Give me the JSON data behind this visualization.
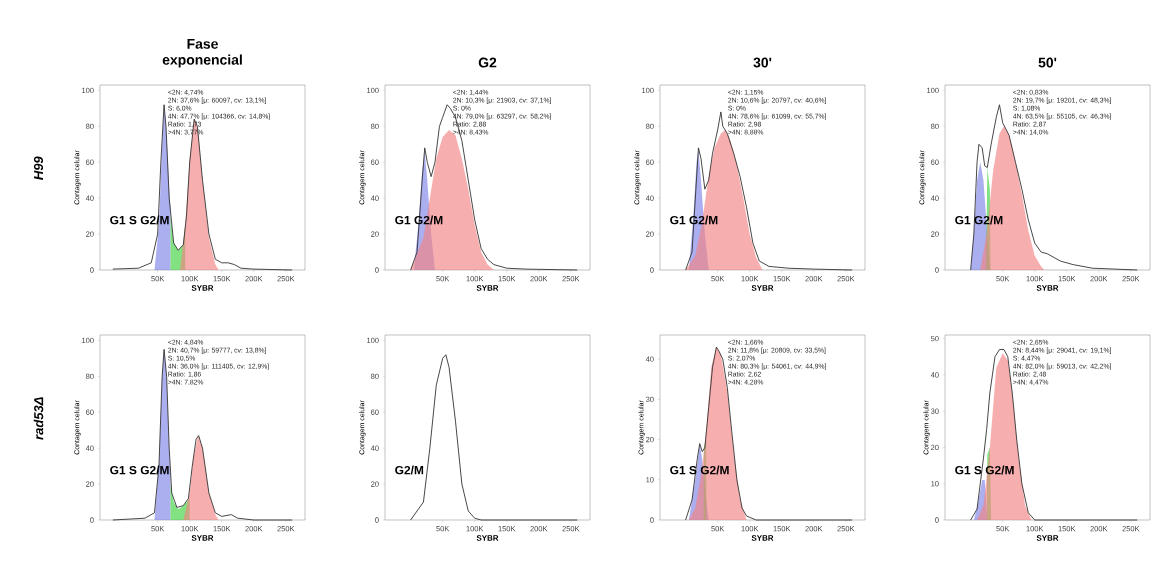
{
  "chart_data": [
    {
      "type": "line",
      "title": "Fase exponencial",
      "xlabel": "SYBR",
      "ylabel": "Contagem celular",
      "xlim": [
        -40000,
        280000
      ],
      "ylim": [
        0,
        103
      ],
      "xticks": [
        {
          "value": 50000,
          "label": "50K"
        },
        {
          "value": 100000,
          "label": "100K"
        },
        {
          "value": 150000,
          "label": "150K"
        },
        {
          "value": 200000,
          "label": "200K"
        },
        {
          "value": 250000,
          "label": "250K"
        }
      ],
      "yticks": [
        0,
        20,
        40,
        60,
        80,
        100
      ],
      "series": [
        {
          "type": "area",
          "color": "#7f84e6",
          "x": [
            45000,
            52000,
            57000,
            60000,
            64000,
            68000,
            70000
          ],
          "values": [
            0,
            25,
            70,
            92,
            75,
            45,
            35
          ]
        },
        {
          "type": "area",
          "color": "#3fd23f",
          "x": [
            70000,
            75000,
            82000,
            90000,
            93000
          ],
          "values": [
            30,
            15,
            11,
            14,
            25
          ]
        },
        {
          "type": "area",
          "color": "#f28282",
          "x": [
            85000,
            93000,
            100000,
            107000,
            113000,
            120000,
            130000,
            140000,
            145000
          ],
          "values": [
            0,
            25,
            62,
            84,
            78,
            50,
            18,
            3,
            0
          ]
        },
        {
          "type": "line",
          "color": "#333333",
          "x": [
            -20000,
            20000,
            40000,
            50000,
            55000,
            60000,
            63000,
            68000,
            75000,
            82000,
            90000,
            95000,
            100000,
            107000,
            112000,
            120000,
            130000,
            140000,
            150000,
            160000,
            170000,
            180000,
            200000,
            260000
          ],
          "values": [
            0.5,
            1,
            4,
            20,
            60,
            92,
            80,
            40,
            15,
            11,
            14,
            30,
            60,
            84,
            80,
            50,
            20,
            6,
            4,
            4,
            3,
            1,
            0.5,
            0
          ]
        }
      ],
      "annotations": [
        {
          "text": "H99"
        },
        "<2N: 4,74%",
        "2N: 37,6%  [μ: 60097, cv: 13,1%]",
        "S: 6,0%",
        "4N: 47,7%  [μ: 104366, cv: 14,8%]",
        "Ratio: 1,73",
        ">4N: 3,77%",
        "G1 S G2/M"
      ]
    },
    {
      "type": "line",
      "title": "G2",
      "xlabel": "SYBR",
      "ylabel": "Contagem celular",
      "xlim": [
        -40000,
        280000
      ],
      "ylim": [
        0,
        103
      ],
      "xticks": [
        {
          "value": 50000,
          "label": "50K"
        },
        {
          "value": 100000,
          "label": "100K"
        },
        {
          "value": 150000,
          "label": "150K"
        },
        {
          "value": 200000,
          "label": "200K"
        },
        {
          "value": 250000,
          "label": "250K"
        }
      ],
      "yticks": [
        0,
        20,
        40,
        60,
        80,
        100
      ],
      "series": [
        {
          "type": "area",
          "color": "#7f84e6",
          "x": [
            5000,
            12000,
            18000,
            22000,
            26000,
            32000,
            38000
          ],
          "values": [
            0,
            25,
            55,
            66,
            50,
            20,
            0
          ]
        },
        {
          "type": "area",
          "color": "#f28282",
          "x": [
            0,
            20000,
            30000,
            40000,
            50000,
            60000,
            70000,
            80000,
            90000,
            100000,
            110000,
            120000,
            130000
          ],
          "values": [
            0,
            18,
            40,
            62,
            74,
            78,
            75,
            62,
            45,
            25,
            10,
            3,
            0
          ]
        },
        {
          "type": "line",
          "color": "#333333",
          "x": [
            0,
            10000,
            18000,
            22000,
            26000,
            32000,
            38000,
            45000,
            50000,
            57000,
            62000,
            70000,
            80000,
            90000,
            100000,
            110000,
            120000,
            130000,
            150000,
            180000,
            260000
          ],
          "values": [
            0,
            10,
            50,
            68,
            60,
            52,
            60,
            80,
            85,
            92,
            90,
            85,
            72,
            50,
            28,
            12,
            6,
            3,
            1,
            0.5,
            0
          ]
        }
      ],
      "annotations": [
        "<2N: 1,44%",
        "2N: 10,3%  [μ: 21903, cv: 37,1%]",
        "S: 0%",
        "4N: 79,0%  [μ: 63297, cv: 58,2%]",
        "Ratio: 2,88",
        ">4N: 8,43%",
        "G1 G2/M"
      ]
    },
    {
      "type": "line",
      "title": "30'",
      "xlabel": "SYBR",
      "ylabel": "Contagem celular",
      "xlim": [
        -40000,
        280000
      ],
      "ylim": [
        0,
        103
      ],
      "xticks": [
        {
          "value": 50000,
          "label": "50K"
        },
        {
          "value": 100000,
          "label": "100K"
        },
        {
          "value": 150000,
          "label": "150K"
        },
        {
          "value": 200000,
          "label": "200K"
        },
        {
          "value": 250000,
          "label": "250K"
        }
      ],
      "yticks": [
        0,
        20,
        40,
        60,
        80,
        100
      ],
      "series": [
        {
          "type": "area",
          "color": "#7f84e6",
          "x": [
            5000,
            12000,
            17000,
            20000,
            24000,
            30000,
            36000
          ],
          "values": [
            0,
            30,
            60,
            67,
            50,
            20,
            0
          ]
        },
        {
          "type": "area",
          "color": "#f28282",
          "x": [
            0,
            15000,
            25000,
            35000,
            45000,
            55000,
            62000,
            70000,
            80000,
            90000,
            100000,
            110000,
            120000
          ],
          "values": [
            0,
            8,
            25,
            50,
            68,
            76,
            78,
            72,
            58,
            40,
            20,
            7,
            0
          ]
        },
        {
          "type": "line",
          "color": "#333333",
          "x": [
            0,
            10000,
            16000,
            20000,
            24000,
            30000,
            36000,
            42000,
            50000,
            55000,
            58000,
            65000,
            75000,
            85000,
            95000,
            105000,
            115000,
            130000,
            160000,
            200000,
            260000
          ],
          "values": [
            0,
            10,
            45,
            68,
            62,
            45,
            50,
            65,
            78,
            88,
            80,
            76,
            65,
            52,
            35,
            15,
            5,
            2,
            1,
            0.5,
            0
          ]
        }
      ],
      "annotations": [
        "<2N: 1,15%",
        "2N: 10,6%  [μ: 20797, cv: 40,6%]",
        "S: 0%",
        "4N: 78,6%  [μ: 61099, cv: 55,7%]",
        "Ratio: 2,98",
        ">4N: 8,88%",
        "G1   G2/M"
      ]
    },
    {
      "type": "line",
      "title": "50'",
      "xlabel": "SYBR",
      "ylabel": "Contagem celular",
      "xlim": [
        -40000,
        280000
      ],
      "ylim": [
        0,
        103
      ],
      "xticks": [
        {
          "value": 50000,
          "label": "50K"
        },
        {
          "value": 100000,
          "label": "100K"
        },
        {
          "value": 150000,
          "label": "150K"
        },
        {
          "value": 200000,
          "label": "200K"
        },
        {
          "value": 250000,
          "label": "250K"
        }
      ],
      "yticks": [
        0,
        20,
        40,
        60,
        80,
        100
      ],
      "series": [
        {
          "type": "area",
          "color": "#7f84e6",
          "x": [
            0,
            5000,
            10000,
            15000,
            20000,
            25000,
            30000
          ],
          "values": [
            0,
            20,
            50,
            60,
            50,
            25,
            0
          ]
        },
        {
          "type": "area",
          "color": "#3fd23f",
          "x": [
            24000,
            26000,
            30000,
            31000
          ],
          "values": [
            0,
            57,
            45,
            0
          ]
        },
        {
          "type": "area",
          "color": "#f28282",
          "x": [
            15000,
            25000,
            35000,
            45000,
            52000,
            60000,
            70000,
            80000,
            90000,
            100000,
            110000,
            115000
          ],
          "values": [
            0,
            20,
            55,
            76,
            80,
            75,
            60,
            42,
            22,
            8,
            2,
            0
          ]
        },
        {
          "type": "line",
          "color": "#333333",
          "x": [
            0,
            5000,
            10000,
            13000,
            18000,
            22000,
            26000,
            32000,
            40000,
            45000,
            50000,
            60000,
            70000,
            80000,
            90000,
            100000,
            110000,
            120000,
            140000,
            160000,
            190000,
            260000
          ],
          "values": [
            0,
            20,
            60,
            70,
            68,
            58,
            57,
            70,
            85,
            92,
            82,
            75,
            60,
            45,
            28,
            15,
            10,
            9,
            5,
            3,
            1,
            0
          ]
        }
      ],
      "annotations": [
        "<2N: 0,83%",
        "2N: 19,7%  [μ: 19201, cv: 48,3%]",
        "S: 1,08%",
        "4N: 63,5%  [μ: 55105, cv: 46,3%]",
        "Ratio: 2,87",
        ">4N: 14,0%",
        "G1  G2/M"
      ]
    },
    {
      "type": "line",
      "xlabel": "SYBR",
      "ylabel": "Contagem celular",
      "xlim": [
        -40000,
        280000
      ],
      "ylim": [
        0,
        103
      ],
      "xticks": [
        {
          "value": 50000,
          "label": "50K"
        },
        {
          "value": 100000,
          "label": "100K"
        },
        {
          "value": 150000,
          "label": "150K"
        },
        {
          "value": 200000,
          "label": "200K"
        },
        {
          "value": 250000,
          "label": "250K"
        }
      ],
      "yticks": [
        0,
        20,
        40,
        60,
        80,
        100
      ],
      "series": [
        {
          "type": "area",
          "color": "#7f84e6",
          "x": [
            45000,
            52000,
            57000,
            60000,
            64000,
            68000,
            70000
          ],
          "values": [
            0,
            30,
            80,
            95,
            80,
            40,
            25
          ]
        },
        {
          "type": "area",
          "color": "#3fd23f",
          "x": [
            70000,
            75000,
            82000,
            90000,
            100000
          ],
          "values": [
            20,
            10,
            6,
            8,
            12
          ]
        },
        {
          "type": "area",
          "color": "#f28282",
          "x": [
            90000,
            100000,
            106000,
            113000,
            120000,
            130000,
            140000,
            145000
          ],
          "values": [
            0,
            15,
            35,
            47,
            40,
            15,
            3,
            0
          ]
        },
        {
          "type": "line",
          "color": "#333333",
          "x": [
            -20000,
            30000,
            45000,
            52000,
            57000,
            60000,
            64000,
            68000,
            72000,
            80000,
            90000,
            98000,
            104000,
            110000,
            114000,
            120000,
            130000,
            140000,
            150000,
            165000,
            175000,
            200000,
            260000
          ],
          "values": [
            0,
            1,
            4,
            30,
            80,
            95,
            80,
            40,
            15,
            7,
            8,
            12,
            30,
            45,
            47,
            40,
            15,
            4,
            2,
            3,
            1,
            0,
            0
          ]
        }
      ],
      "annotations": [
        {
          "text": "rad53Δ"
        },
        "<2N: 4,84%",
        "2N: 40,7%  [μ: 59777, cv: 13,8%]",
        "S: 10,5%",
        "4N: 36,0%  [μ: 111405, cv: 12,9%]",
        "Ratio: 1,86",
        ">4N: 7,82%",
        "G1 S G2/M"
      ]
    },
    {
      "type": "line",
      "xlabel": "SYBR",
      "ylabel": "Contagem celular",
      "xlim": [
        -40000,
        280000
      ],
      "ylim": [
        0,
        103
      ],
      "xticks": [
        {
          "value": 50000,
          "label": "50K"
        },
        {
          "value": 100000,
          "label": "100K"
        },
        {
          "value": 150000,
          "label": "150K"
        },
        {
          "value": 200000,
          "label": "200K"
        },
        {
          "value": 250000,
          "label": "250K"
        }
      ],
      "yticks": [
        0,
        20,
        40,
        60,
        80,
        100
      ],
      "series": [
        {
          "type": "line",
          "color": "#333333",
          "x": [
            0,
            20000,
            30000,
            40000,
            50000,
            55000,
            60000,
            70000,
            80000,
            90000,
            100000,
            110000,
            260000
          ],
          "values": [
            0,
            10,
            40,
            75,
            90,
            92,
            85,
            55,
            20,
            5,
            1,
            0,
            0
          ]
        }
      ],
      "annotations": [
        "G2/M"
      ]
    },
    {
      "type": "line",
      "xlabel": "SYBR",
      "ylabel": "Contagem celular",
      "xlim": [
        -40000,
        280000
      ],
      "ylim": [
        0,
        46
      ],
      "xticks": [
        {
          "value": 50000,
          "label": "50K"
        },
        {
          "value": 100000,
          "label": "100K"
        },
        {
          "value": 150000,
          "label": "150K"
        },
        {
          "value": 200000,
          "label": "200K"
        },
        {
          "value": 250000,
          "label": "250K"
        }
      ],
      "yticks": [
        0,
        10,
        20,
        30,
        40
      ],
      "series": [
        {
          "type": "area",
          "color": "#7f84e6",
          "x": [
            5000,
            15000,
            22000,
            26000,
            32000,
            36000
          ],
          "values": [
            0,
            10,
            19,
            15,
            5,
            0
          ]
        },
        {
          "type": "area",
          "color": "#3fd23f",
          "x": [
            28000,
            28500,
            32000,
            32500
          ],
          "values": [
            0,
            18,
            20,
            0
          ]
        },
        {
          "type": "area",
          "color": "#f28282",
          "x": [
            5000,
            15000,
            25000,
            32000,
            40000,
            48000,
            55000,
            65000,
            75000,
            85000,
            95000
          ],
          "values": [
            0,
            3,
            12,
            22,
            38,
            43,
            41,
            32,
            17,
            5,
            0
          ]
        },
        {
          "type": "line",
          "color": "#333333",
          "x": [
            0,
            10000,
            18000,
            22000,
            26000,
            30000,
            36000,
            42000,
            48000,
            52000,
            58000,
            65000,
            72000,
            80000,
            88000,
            95000,
            110000,
            260000
          ],
          "values": [
            0,
            5,
            15,
            19,
            17,
            18,
            28,
            38,
            43,
            42,
            40,
            33,
            22,
            10,
            3,
            1,
            0,
            0
          ]
        }
      ],
      "annotations": [
        "<2N: 1,66%",
        "2N: 11,8%  [μ: 20809, cv: 33,5%]",
        "S: 2,07%",
        "4N: 80,3%  [μ: 54061, cv: 44,9%]",
        "Ratio: 2,62",
        ">4N: 4,28%",
        "G1 S G2/M"
      ]
    },
    {
      "type": "line",
      "xlabel": "SYBR",
      "ylabel": "Contagem celular",
      "xlim": [
        -40000,
        280000
      ],
      "ylim": [
        0,
        51
      ],
      "xticks": [
        {
          "value": 50000,
          "label": "50K"
        },
        {
          "value": 100000,
          "label": "100K"
        },
        {
          "value": 150000,
          "label": "150K"
        },
        {
          "value": 200000,
          "label": "200K"
        },
        {
          "value": 250000,
          "label": "250K"
        }
      ],
      "yticks": [
        0,
        10,
        20,
        30,
        40,
        50
      ],
      "series": [
        {
          "type": "area",
          "color": "#7f84e6",
          "x": [
            5000,
            12000,
            18000,
            22000,
            26000
          ],
          "values": [
            0,
            5,
            11,
            11,
            0
          ]
        },
        {
          "type": "area",
          "color": "#3fd23f",
          "x": [
            25000,
            26000,
            30000,
            32000
          ],
          "values": [
            0,
            18,
            20,
            0
          ]
        },
        {
          "type": "area",
          "color": "#f28282",
          "x": [
            10000,
            20000,
            30000,
            40000,
            50000,
            58000,
            65000,
            75000,
            85000,
            95000
          ],
          "values": [
            0,
            4,
            20,
            42,
            46,
            44,
            35,
            17,
            4,
            0
          ]
        },
        {
          "type": "line",
          "color": "#333333",
          "x": [
            0,
            10000,
            15000,
            20000,
            25000,
            30000,
            38000,
            45000,
            52000,
            58000,
            65000,
            72000,
            80000,
            90000,
            100000,
            260000
          ],
          "values": [
            0,
            3,
            10,
            17,
            25,
            35,
            45,
            47,
            47,
            45,
            35,
            22,
            10,
            2,
            0,
            0
          ]
        }
      ],
      "annotations": [
        "<2N: 2,65%",
        "2N: 8,44%  [μ: 29041, cv: 19,1%]",
        "S: 4,47%",
        "4N: 82,0%  [μ: 59013, cv: 42,2%]",
        "Ratio: 2,48",
        ">4N: 4,47%",
        "G1 S G2/M"
      ]
    }
  ]
}
